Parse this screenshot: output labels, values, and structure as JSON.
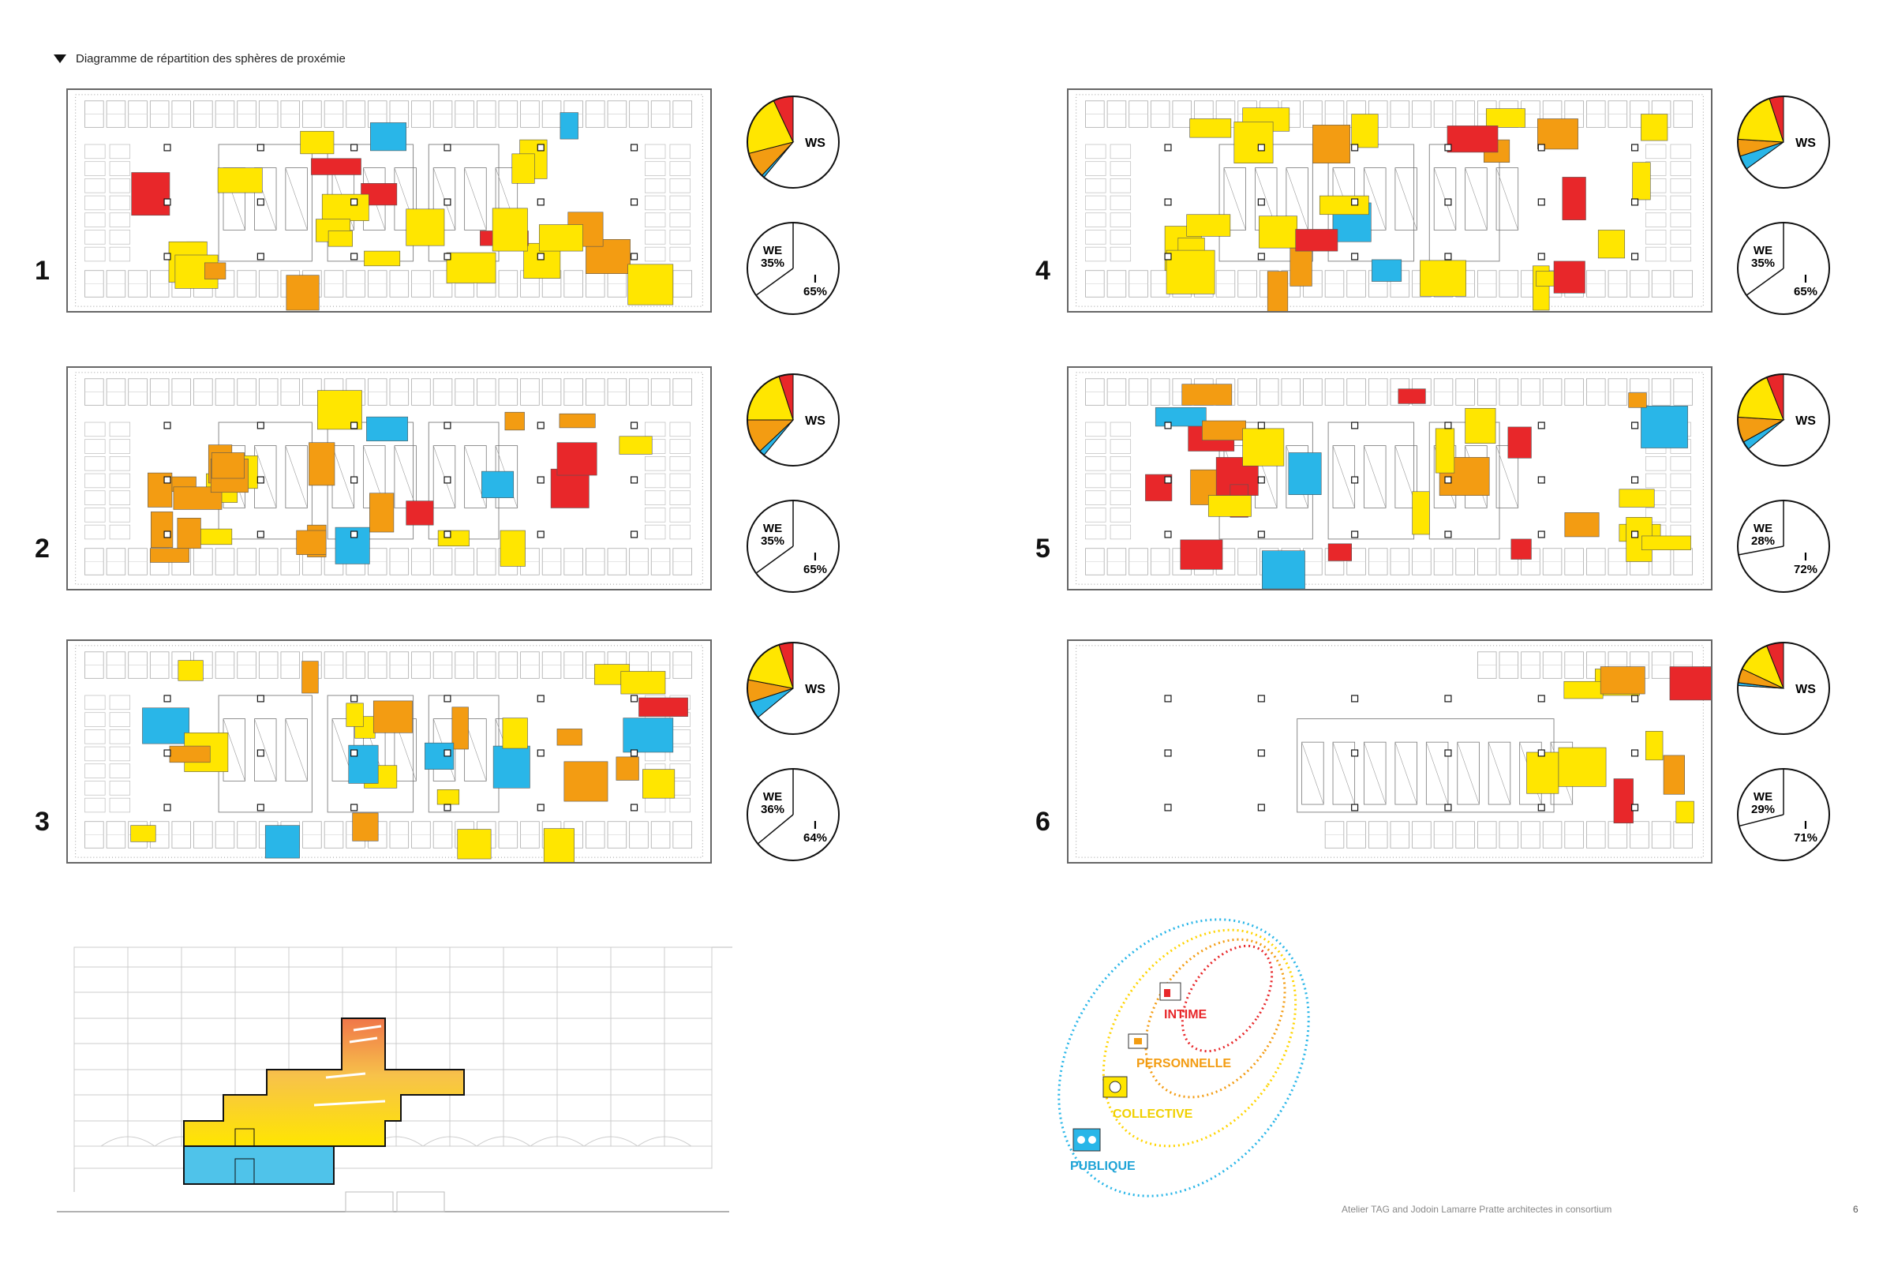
{
  "title": "Diagramme de répartition des sphères de proxémie",
  "colors": {
    "intime": "#e8272a",
    "personnelle": "#f39c12",
    "collective": "#ffe600",
    "publique": "#29b6e8",
    "ws": "#ffffff"
  },
  "floors": [
    {
      "number": "1",
      "ws_label": "WS",
      "we_label": "WE",
      "we_pct": "35%",
      "i_label": "I",
      "i_pct": "65%",
      "ws_mix": {
        "intime": 0.07,
        "personnelle": 0.09,
        "collective": 0.22,
        "publique": 0.01,
        "ws": 0.61
      },
      "we_frac": 0.35
    },
    {
      "number": "2",
      "ws_label": "WS",
      "we_label": "WE",
      "we_pct": "35%",
      "i_label": "I",
      "i_pct": "65%",
      "ws_mix": {
        "intime": 0.05,
        "personnelle": 0.12,
        "collective": 0.2,
        "publique": 0.02,
        "ws": 0.61
      },
      "we_frac": 0.35
    },
    {
      "number": "3",
      "ws_label": "WS",
      "we_label": "WE",
      "we_pct": "36%",
      "i_label": "I",
      "i_pct": "64%",
      "ws_mix": {
        "intime": 0.05,
        "personnelle": 0.08,
        "collective": 0.17,
        "publique": 0.06,
        "ws": 0.64
      },
      "we_frac": 0.36
    },
    {
      "number": "4",
      "ws_label": "WS",
      "we_label": "WE",
      "we_pct": "35%",
      "i_label": "I",
      "i_pct": "65%",
      "ws_mix": {
        "intime": 0.05,
        "personnelle": 0.06,
        "collective": 0.19,
        "publique": 0.05,
        "ws": 0.65
      },
      "we_frac": 0.35
    },
    {
      "number": "5",
      "ws_label": "WS",
      "we_label": "WE",
      "we_pct": "28%",
      "i_label": "I",
      "i_pct": "72%",
      "ws_mix": {
        "intime": 0.06,
        "personnelle": 0.09,
        "collective": 0.18,
        "publique": 0.03,
        "ws": 0.64
      },
      "we_frac": 0.28
    },
    {
      "number": "6",
      "ws_label": "WS",
      "we_label": "WE",
      "we_pct": "29%",
      "i_label": "I",
      "i_pct": "71%",
      "ws_mix": {
        "intime": 0.06,
        "personnelle": 0.05,
        "collective": 0.12,
        "publique": 0.01,
        "ws": 0.76
      },
      "we_frac": 0.29
    }
  ],
  "legend": {
    "intime": "INTIME",
    "personnelle": "PERSONNELLE",
    "collective": "COLLECTIVE",
    "publique": "PUBLIQUE"
  },
  "footer": {
    "credit": "Atelier TAG and Jodoin Lamarre Pratte architectes in consortium",
    "page": "6"
  }
}
